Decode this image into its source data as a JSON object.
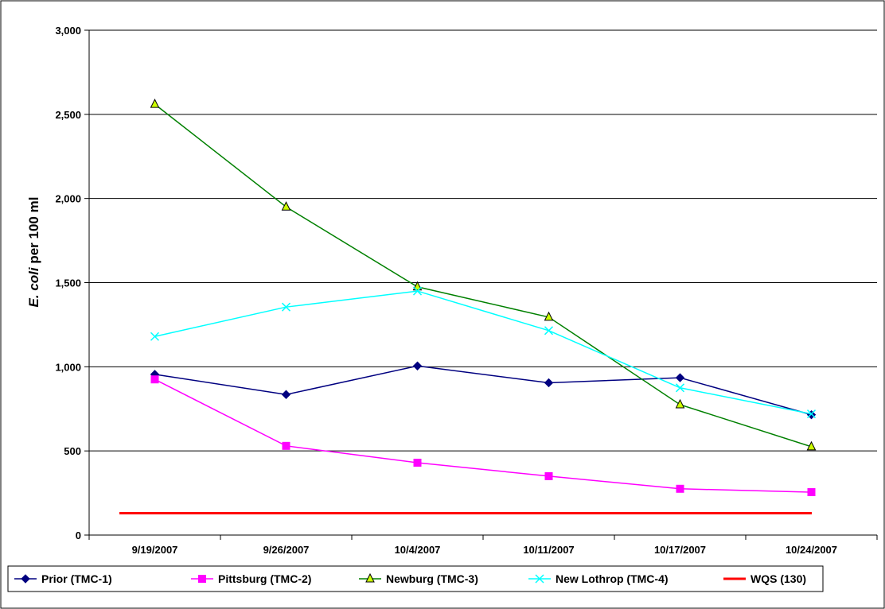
{
  "chart_data": {
    "type": "line",
    "title": "",
    "xlabel": "",
    "ylabel_italic": "E. coli",
    "ylabel_rest": " per 100 ml",
    "ylim": [
      0,
      3000
    ],
    "yticks": [
      0,
      500,
      1000,
      1500,
      2000,
      2500,
      3000
    ],
    "ytick_labels": [
      "0",
      "500",
      "1,000",
      "1,500",
      "2,000",
      "2,500",
      "3,000"
    ],
    "grid": "horizontal",
    "legend_position": "bottom",
    "categories": [
      "9/19/2007",
      "9/26/2007",
      "10/4/2007",
      "10/11/2007",
      "10/17/2007",
      "10/24/2007"
    ],
    "series": [
      {
        "name": "Prior (TMC-1)",
        "color": "#000080",
        "marker": "diamond",
        "values": [
          955,
          835,
          1005,
          905,
          935,
          715
        ]
      },
      {
        "name": "Pittsburg (TMC-2)",
        "color": "#ff00ff",
        "marker": "square",
        "values": [
          925,
          530,
          430,
          350,
          275,
          255
        ]
      },
      {
        "name": "Newburg (TMC-3)",
        "color": "#008000",
        "marker": "triangle",
        "marker_fill": "#ccff00",
        "values": [
          2560,
          1950,
          1475,
          1295,
          775,
          525
        ]
      },
      {
        "name": "New Lothrop (TMC-4)",
        "color": "#00ffff",
        "marker": "x",
        "values": [
          1180,
          1355,
          1450,
          1215,
          875,
          720
        ]
      },
      {
        "name": "WQS (130)",
        "color": "#ff0000",
        "marker": "none",
        "thick": true,
        "values": [
          130,
          130,
          130,
          130,
          130,
          130
        ]
      }
    ]
  }
}
